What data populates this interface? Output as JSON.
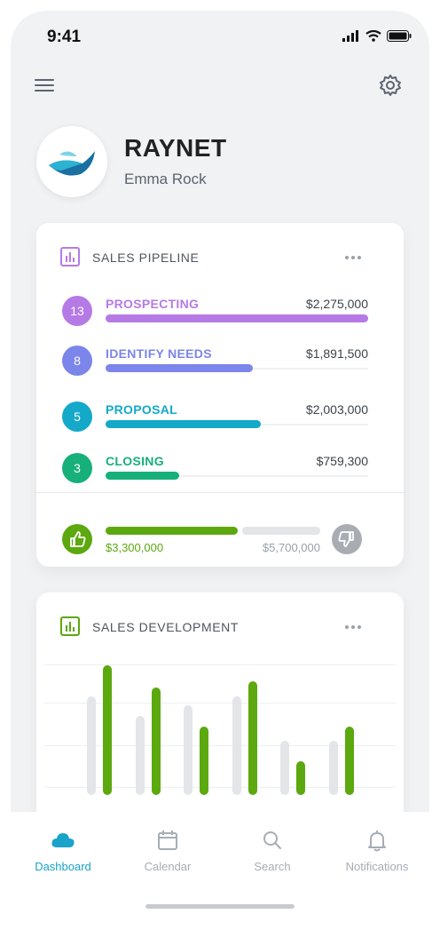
{
  "status": {
    "time": "9:41"
  },
  "header": {
    "brand": "RAYNET",
    "user": "Emma Rock"
  },
  "pipeline": {
    "title": "SALES PIPELINE",
    "stages": [
      {
        "count": "13",
        "label": "PROSPECTING",
        "amount": "$2,275,000",
        "fraction": 1.0,
        "color": "#b67ae6",
        "num_color": "#b67ae6"
      },
      {
        "count": "8",
        "label": "IDENTIFY NEEDS",
        "amount": "$1,891,500",
        "fraction": 0.56,
        "color": "#7c85ea",
        "num_color": "#7c85ea"
      },
      {
        "count": "5",
        "label": "PROPOSAL",
        "amount": "$2,003,000",
        "fraction": 0.59,
        "color": "#14a9c9",
        "num_color": "#14a9c9"
      },
      {
        "count": "3",
        "label": "CLOSING",
        "amount": "$759,300",
        "fraction": 0.28,
        "color": "#17b07a",
        "num_color": "#17b07a"
      }
    ],
    "won": "$3,300,000",
    "lost": "$5,700,000",
    "won_color": "#5ca80f"
  },
  "development": {
    "title": "SALES DEVELOPMENT",
    "chart_data": {
      "type": "bar",
      "series": [
        {
          "name": "",
          "values": [
            0.76,
            0.61,
            0.69,
            0.76,
            0.42,
            0.42
          ],
          "color": "#e3e5e8"
        },
        {
          "name": "",
          "values": [
            1.0,
            0.83,
            0.53,
            0.88,
            0.26,
            0.53
          ],
          "color": "#5ca80f"
        }
      ]
    }
  },
  "tabs": [
    {
      "label": "Dashboard",
      "icon": "cloud-icon",
      "active": true
    },
    {
      "label": "Calendar",
      "icon": "calendar-icon",
      "active": false
    },
    {
      "label": "Search",
      "icon": "search-icon",
      "active": false
    },
    {
      "label": "Notifications",
      "icon": "bell-icon",
      "active": false
    }
  ],
  "colors": {
    "accent": "#1aa3c8",
    "background": "#f1f2f4"
  }
}
